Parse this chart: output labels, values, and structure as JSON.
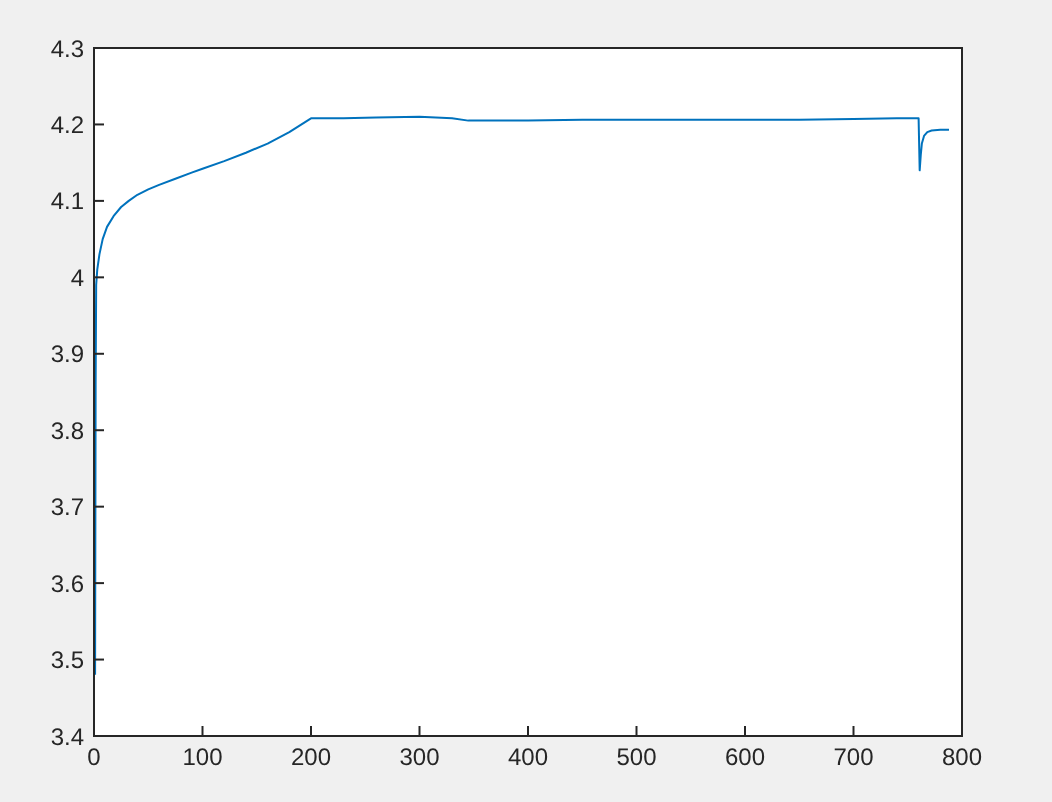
{
  "chart_data": {
    "type": "line",
    "xlim": [
      0,
      800
    ],
    "ylim": [
      3.4,
      4.3
    ],
    "xticks": [
      0,
      100,
      200,
      300,
      400,
      500,
      600,
      700,
      800
    ],
    "yticks": [
      3.4,
      3.5,
      3.6,
      3.7,
      3.8,
      3.9,
      4,
      4.1,
      4.2,
      4.3
    ],
    "series": [
      {
        "color": "#0072bd",
        "x": [
          1,
          1.5,
          2,
          3,
          5,
          8,
          12,
          18,
          25,
          32,
          40,
          50,
          60,
          75,
          90,
          100,
          120,
          140,
          160,
          180,
          200,
          230,
          260,
          300,
          330,
          345,
          360,
          400,
          450,
          500,
          550,
          600,
          650,
          700,
          740,
          760,
          761,
          762,
          763,
          765,
          768,
          772,
          780,
          788
        ],
        "values": [
          3.48,
          3.86,
          3.99,
          4.01,
          4.03,
          4.05,
          4.066,
          4.08,
          4.092,
          4.1,
          4.108,
          4.115,
          4.121,
          4.129,
          4.137,
          4.142,
          4.152,
          4.163,
          4.175,
          4.19,
          4.208,
          4.208,
          4.209,
          4.21,
          4.208,
          4.205,
          4.205,
          4.205,
          4.206,
          4.206,
          4.206,
          4.206,
          4.206,
          4.207,
          4.208,
          4.208,
          4.14,
          4.16,
          4.175,
          4.185,
          4.19,
          4.192,
          4.193,
          4.193
        ]
      }
    ]
  }
}
